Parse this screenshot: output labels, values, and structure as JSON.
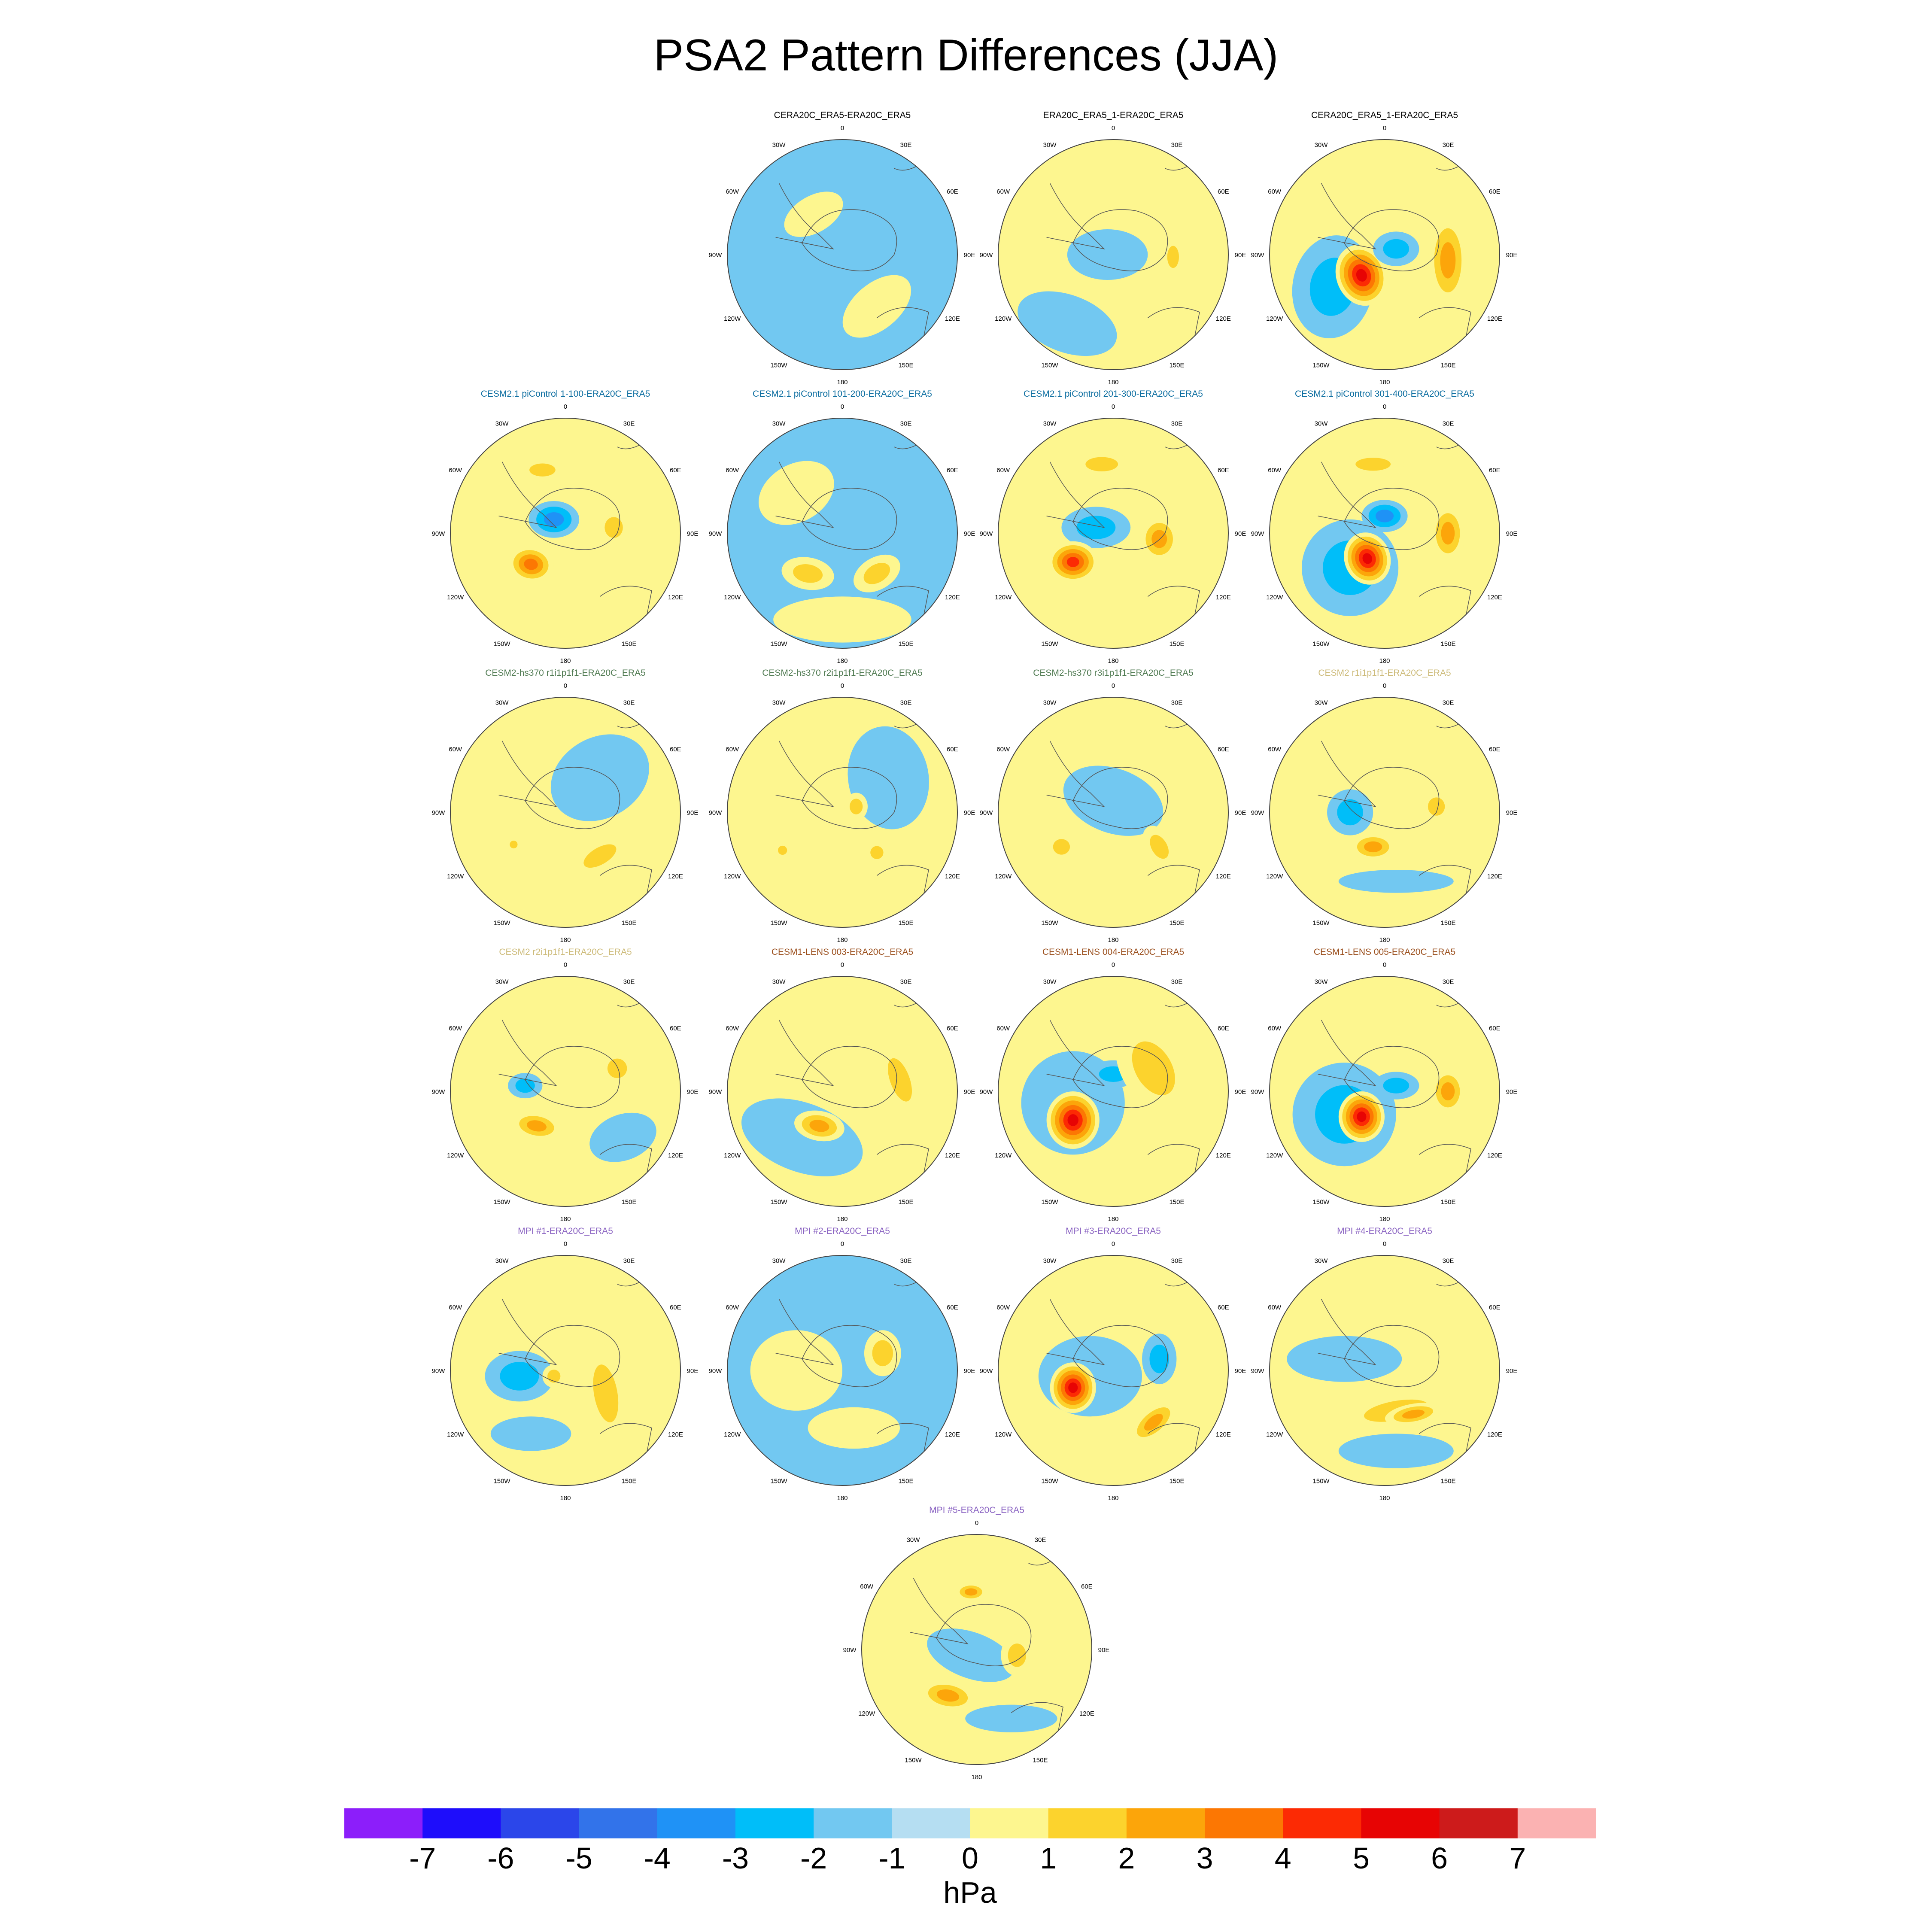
{
  "title": "PSA2 Pattern Differences (JJA)",
  "colorbar": {
    "unit": "hPa",
    "tick_labels": [
      "-7",
      "-6",
      "-5",
      "-4",
      "-3",
      "-2",
      "-1",
      "0",
      "1",
      "2",
      "3",
      "4",
      "5",
      "6",
      "7"
    ],
    "colors": [
      "#8c1efa",
      "#1e0dfb",
      "#2b46ea",
      "#3273ea",
      "#1f92f6",
      "#00bef9",
      "#72c8f1",
      "#b5def2",
      "#fdf68f",
      "#fcd32d",
      "#fca50a",
      "#fc7703",
      "#fc2a04",
      "#e70404",
      "#cd1b1b",
      "#fbb2b2"
    ]
  },
  "panel_labels": {
    "lon_0": "0",
    "lon_30e": "30E",
    "lon_60e": "60E",
    "lon_90e": "90E",
    "lon_120e": "120E",
    "lon_150e": "150E",
    "lon_180": "180",
    "lon_150w": "150W",
    "lon_120w": "120W",
    "lon_90w": "90W",
    "lon_60w": "60W",
    "lon_30w": "30W"
  },
  "panels": [
    {
      "title": "CERA20C_ERA5-ERA20C_ERA5",
      "title_color": "#000000",
      "base": "neg",
      "blobs": [
        {
          "v": 1,
          "dx": -0.25,
          "dy": -0.35,
          "rx": 0.28,
          "ry": 0.16,
          "rot": -30
        },
        {
          "v": 1,
          "dx": 0.3,
          "dy": 0.45,
          "rx": 0.35,
          "ry": 0.2,
          "rot": -40
        }
      ]
    },
    {
      "title": "ERA20C_ERA5_1-ERA20C_ERA5",
      "title_color": "#000000",
      "base": "pos",
      "blobs": [
        {
          "v": -1,
          "dx": -0.05,
          "dy": 0.0,
          "rx": 0.35,
          "ry": 0.22,
          "rot": 0
        },
        {
          "v": 2,
          "dx": 0.52,
          "dy": 0.02,
          "rx": 0.09,
          "ry": 0.17,
          "rot": 0
        },
        {
          "v": -1,
          "dx": -0.4,
          "dy": 0.6,
          "rx": 0.45,
          "ry": 0.25,
          "rot": 20
        }
      ]
    },
    {
      "title": "CERA20C_ERA5_1-ERA20C_ERA5",
      "title_color": "#000000",
      "base": "pos",
      "blobs": [
        {
          "v": -2,
          "dx": -0.45,
          "dy": 0.28,
          "rx": 0.35,
          "ry": 0.45,
          "rot": 10
        },
        {
          "v": 6,
          "dx": -0.2,
          "dy": 0.18,
          "rx": 0.22,
          "ry": 0.27,
          "rot": -20
        },
        {
          "v": -2,
          "dx": 0.1,
          "dy": -0.05,
          "rx": 0.2,
          "ry": 0.15,
          "rot": 0
        },
        {
          "v": 3,
          "dx": 0.55,
          "dy": 0.05,
          "rx": 0.17,
          "ry": 0.4,
          "rot": 0
        }
      ]
    },
    {
      "title": "CESM2.1 piControl 1-100-ERA20C_ERA5",
      "title_color": "#0b6da0",
      "base": "pos",
      "blobs": [
        {
          "v": -3,
          "dx": -0.1,
          "dy": -0.12,
          "rx": 0.22,
          "ry": 0.16,
          "rot": 0
        },
        {
          "v": 4,
          "dx": -0.3,
          "dy": 0.27,
          "rx": 0.2,
          "ry": 0.16,
          "rot": 10
        },
        {
          "v": 2,
          "dx": 0.42,
          "dy": -0.05,
          "rx": 0.14,
          "ry": 0.16,
          "rot": 0
        },
        {
          "v": 2,
          "dx": -0.2,
          "dy": -0.55,
          "rx": 0.2,
          "ry": 0.1,
          "rot": 0
        }
      ]
    },
    {
      "title": "CESM2.1 piControl 101-200-ERA20C_ERA5",
      "title_color": "#0b6da0",
      "base": "neg",
      "blobs": [
        {
          "v": 1,
          "dx": -0.4,
          "dy": -0.35,
          "rx": 0.35,
          "ry": 0.25,
          "rot": -30
        },
        {
          "v": 2,
          "dx": -0.3,
          "dy": 0.35,
          "rx": 0.23,
          "ry": 0.14,
          "rot": 10
        },
        {
          "v": 2,
          "dx": 0.3,
          "dy": 0.35,
          "rx": 0.22,
          "ry": 0.14,
          "rot": -30
        },
        {
          "v": 1,
          "dx": 0.0,
          "dy": 0.75,
          "rx": 0.6,
          "ry": 0.2,
          "rot": 0
        }
      ]
    },
    {
      "title": "CESM2.1 piControl 201-300-ERA20C_ERA5",
      "title_color": "#0b6da0",
      "base": "pos",
      "blobs": [
        {
          "v": -2,
          "dx": -0.15,
          "dy": -0.05,
          "rx": 0.3,
          "ry": 0.18,
          "rot": 0
        },
        {
          "v": 5,
          "dx": -0.35,
          "dy": 0.25,
          "rx": 0.22,
          "ry": 0.18,
          "rot": 0
        },
        {
          "v": 3,
          "dx": 0.4,
          "dy": 0.05,
          "rx": 0.17,
          "ry": 0.2,
          "rot": 0
        },
        {
          "v": 2,
          "dx": -0.1,
          "dy": -0.6,
          "rx": 0.25,
          "ry": 0.11,
          "rot": 0
        }
      ]
    },
    {
      "title": "CESM2.1 piControl 301-400-ERA20C_ERA5",
      "title_color": "#0b6da0",
      "base": "pos",
      "blobs": [
        {
          "v": -2,
          "dx": -0.3,
          "dy": 0.3,
          "rx": 0.42,
          "ry": 0.42,
          "rot": 0
        },
        {
          "v": 6,
          "dx": -0.15,
          "dy": 0.22,
          "rx": 0.2,
          "ry": 0.23,
          "rot": -20
        },
        {
          "v": -3,
          "dx": 0.0,
          "dy": -0.15,
          "rx": 0.2,
          "ry": 0.14,
          "rot": 0
        },
        {
          "v": 3,
          "dx": 0.55,
          "dy": 0.0,
          "rx": 0.15,
          "ry": 0.25,
          "rot": 0
        },
        {
          "v": 2,
          "dx": -0.1,
          "dy": -0.6,
          "rx": 0.27,
          "ry": 0.1,
          "rot": 0
        }
      ]
    },
    {
      "title": "CESM2-hs370 r1i1p1f1-ERA20C_ERA5",
      "title_color": "#4f7a51",
      "base": "pos",
      "blobs": [
        {
          "v": -1,
          "dx": 0.3,
          "dy": -0.3,
          "rx": 0.45,
          "ry": 0.35,
          "rot": -30
        },
        {
          "v": 2,
          "dx": 0.3,
          "dy": 0.38,
          "rx": 0.28,
          "ry": 0.13,
          "rot": -30
        },
        {
          "v": 2,
          "dx": -0.45,
          "dy": 0.28,
          "rx": 0.06,
          "ry": 0.06,
          "rot": 0
        }
      ]
    },
    {
      "title": "CESM2-hs370 r2i1p1f1-ERA20C_ERA5",
      "title_color": "#4f7a51",
      "base": "pos",
      "blobs": [
        {
          "v": -1,
          "dx": 0.4,
          "dy": -0.3,
          "rx": 0.35,
          "ry": 0.45,
          "rot": -10
        },
        {
          "v": 2,
          "dx": 0.3,
          "dy": 0.35,
          "rx": 0.1,
          "ry": 0.1,
          "rot": 0
        },
        {
          "v": 2,
          "dx": -0.52,
          "dy": 0.33,
          "rx": 0.07,
          "ry": 0.07,
          "rot": 0
        },
        {
          "v": 2,
          "dx": 0.12,
          "dy": -0.05,
          "rx": 0.1,
          "ry": 0.12,
          "rot": 0
        }
      ]
    },
    {
      "title": "CESM2-hs370 r3i1p1f1-ERA20C_ERA5",
      "title_color": "#4f7a51",
      "base": "pos",
      "blobs": [
        {
          "v": -1,
          "dx": 0.0,
          "dy": -0.1,
          "rx": 0.45,
          "ry": 0.28,
          "rot": 20
        },
        {
          "v": 2,
          "dx": -0.45,
          "dy": 0.3,
          "rx": 0.13,
          "ry": 0.12,
          "rot": 0
        },
        {
          "v": 2,
          "dx": 0.4,
          "dy": 0.3,
          "rx": 0.12,
          "ry": 0.2,
          "rot": -30
        }
      ]
    },
    {
      "title": "CESM2 r1i1p1f1-ERA20C_ERA5",
      "title_color": "#cdbb7a",
      "base": "pos",
      "blobs": [
        {
          "v": -2,
          "dx": -0.3,
          "dy": 0.0,
          "rx": 0.2,
          "ry": 0.2,
          "rot": 0
        },
        {
          "v": 3,
          "dx": -0.1,
          "dy": 0.3,
          "rx": 0.2,
          "ry": 0.12,
          "rot": 0
        },
        {
          "v": 2,
          "dx": 0.45,
          "dy": -0.05,
          "rx": 0.13,
          "ry": 0.14,
          "rot": 0
        },
        {
          "v": -1,
          "dx": 0.1,
          "dy": 0.6,
          "rx": 0.5,
          "ry": 0.1,
          "rot": 0
        }
      ]
    },
    {
      "title": "CESM2 r2i1p1f1-ERA20C_ERA5",
      "title_color": "#cdbb7a",
      "base": "pos",
      "blobs": [
        {
          "v": -2,
          "dx": -0.35,
          "dy": -0.05,
          "rx": 0.15,
          "ry": 0.11,
          "rot": 0
        },
        {
          "v": 3,
          "dx": -0.25,
          "dy": 0.3,
          "rx": 0.22,
          "ry": 0.12,
          "rot": 10
        },
        {
          "v": 2,
          "dx": 0.45,
          "dy": -0.2,
          "rx": 0.15,
          "ry": 0.15,
          "rot": 0
        },
        {
          "v": -1,
          "dx": 0.5,
          "dy": 0.4,
          "rx": 0.3,
          "ry": 0.2,
          "rot": -20
        }
      ]
    },
    {
      "title": "CESM1-LENS 003-ERA20C_ERA5",
      "title_color": "#9a4e1c",
      "base": "pos",
      "blobs": [
        {
          "v": -1,
          "dx": -0.35,
          "dy": 0.4,
          "rx": 0.55,
          "ry": 0.3,
          "rot": 20
        },
        {
          "v": 3,
          "dx": -0.2,
          "dy": 0.3,
          "rx": 0.22,
          "ry": 0.13,
          "rot": 10
        },
        {
          "v": 2,
          "dx": 0.5,
          "dy": -0.1,
          "rx": 0.15,
          "ry": 0.35,
          "rot": -20
        }
      ]
    },
    {
      "title": "CESM1-LENS 004-ERA20C_ERA5",
      "title_color": "#9a4e1c",
      "base": "pos",
      "blobs": [
        {
          "v": -1,
          "dx": -0.35,
          "dy": 0.1,
          "rx": 0.45,
          "ry": 0.45,
          "rot": 0
        },
        {
          "v": 6,
          "dx": -0.35,
          "dy": 0.25,
          "rx": 0.23,
          "ry": 0.25,
          "rot": 0
        },
        {
          "v": -2,
          "dx": 0.0,
          "dy": -0.15,
          "rx": 0.22,
          "ry": 0.12,
          "rot": 0
        },
        {
          "v": 2,
          "dx": 0.35,
          "dy": -0.2,
          "rx": 0.28,
          "ry": 0.45,
          "rot": -30
        }
      ]
    },
    {
      "title": "CESM1-LENS 005-ERA20C_ERA5",
      "title_color": "#9a4e1c",
      "base": "pos",
      "blobs": [
        {
          "v": -2,
          "dx": -0.35,
          "dy": 0.2,
          "rx": 0.45,
          "ry": 0.45,
          "rot": 0
        },
        {
          "v": 6,
          "dx": -0.2,
          "dy": 0.22,
          "rx": 0.2,
          "ry": 0.22,
          "rot": 0
        },
        {
          "v": -2,
          "dx": 0.1,
          "dy": -0.05,
          "rx": 0.2,
          "ry": 0.12,
          "rot": 0
        },
        {
          "v": 3,
          "dx": 0.55,
          "dy": 0.0,
          "rx": 0.15,
          "ry": 0.2,
          "rot": 0
        }
      ]
    },
    {
      "title": "MPI #1-ERA20C_ERA5",
      "title_color": "#8a63c2",
      "base": "pos",
      "blobs": [
        {
          "v": -2,
          "dx": -0.4,
          "dy": 0.05,
          "rx": 0.3,
          "ry": 0.22,
          "rot": 0
        },
        {
          "v": 2,
          "dx": -0.1,
          "dy": 0.05,
          "rx": 0.1,
          "ry": 0.1,
          "rot": 0
        },
        {
          "v": 2,
          "dx": 0.35,
          "dy": 0.2,
          "rx": 0.18,
          "ry": 0.45,
          "rot": -10
        },
        {
          "v": -1,
          "dx": -0.3,
          "dy": 0.55,
          "rx": 0.35,
          "ry": 0.15,
          "rot": 0
        }
      ]
    },
    {
      "title": "MPI #2-ERA20C_ERA5",
      "title_color": "#8a63c2",
      "base": "neg",
      "blobs": [
        {
          "v": 1,
          "dx": -0.4,
          "dy": 0.0,
          "rx": 0.4,
          "ry": 0.35,
          "rot": 0
        },
        {
          "v": 2,
          "dx": 0.35,
          "dy": -0.15,
          "rx": 0.16,
          "ry": 0.2,
          "rot": 0
        },
        {
          "v": 3,
          "dx": 0.0,
          "dy": 0.45,
          "rx": 0.18,
          "ry": 0.08,
          "rot": 0
        },
        {
          "v": 1,
          "dx": 0.1,
          "dy": 0.5,
          "rx": 0.4,
          "ry": 0.18,
          "rot": 0
        }
      ]
    },
    {
      "title": "MPI #3-ERA20C_ERA5",
      "title_color": "#8a63c2",
      "base": "pos",
      "blobs": [
        {
          "v": -1,
          "dx": -0.2,
          "dy": 0.05,
          "rx": 0.45,
          "ry": 0.35,
          "rot": 0
        },
        {
          "v": 6,
          "dx": -0.35,
          "dy": 0.15,
          "rx": 0.2,
          "ry": 0.22,
          "rot": 0
        },
        {
          "v": -2,
          "dx": 0.4,
          "dy": -0.1,
          "rx": 0.15,
          "ry": 0.22,
          "rot": 0
        },
        {
          "v": 3,
          "dx": 0.35,
          "dy": 0.45,
          "rx": 0.25,
          "ry": 0.12,
          "rot": -40
        }
      ]
    },
    {
      "title": "MPI #4-ERA20C_ERA5",
      "title_color": "#8a63c2",
      "base": "pos",
      "blobs": [
        {
          "v": -1,
          "dx": -0.35,
          "dy": -0.1,
          "rx": 0.5,
          "ry": 0.2,
          "rot": 0
        },
        {
          "v": 2,
          "dx": 0.1,
          "dy": 0.35,
          "rx": 0.5,
          "ry": 0.15,
          "rot": -10
        },
        {
          "v": 3,
          "dx": 0.25,
          "dy": 0.38,
          "rx": 0.25,
          "ry": 0.09,
          "rot": -10
        },
        {
          "v": -1,
          "dx": 0.1,
          "dy": 0.7,
          "rx": 0.5,
          "ry": 0.15,
          "rot": 0
        }
      ]
    },
    {
      "title": "MPI #5-ERA20C_ERA5",
      "title_color": "#8a63c2",
      "base": "pos",
      "blobs": [
        {
          "v": -1,
          "dx": -0.05,
          "dy": 0.05,
          "rx": 0.4,
          "ry": 0.2,
          "rot": 20
        },
        {
          "v": 3,
          "dx": -0.05,
          "dy": -0.5,
          "rx": 0.14,
          "ry": 0.08,
          "rot": 0
        },
        {
          "v": 3,
          "dx": -0.25,
          "dy": 0.4,
          "rx": 0.25,
          "ry": 0.13,
          "rot": 10
        },
        {
          "v": 2,
          "dx": 0.35,
          "dy": 0.05,
          "rx": 0.14,
          "ry": 0.18,
          "rot": 0
        },
        {
          "v": -1,
          "dx": 0.3,
          "dy": 0.6,
          "rx": 0.4,
          "ry": 0.12,
          "rot": 0
        }
      ]
    }
  ]
}
